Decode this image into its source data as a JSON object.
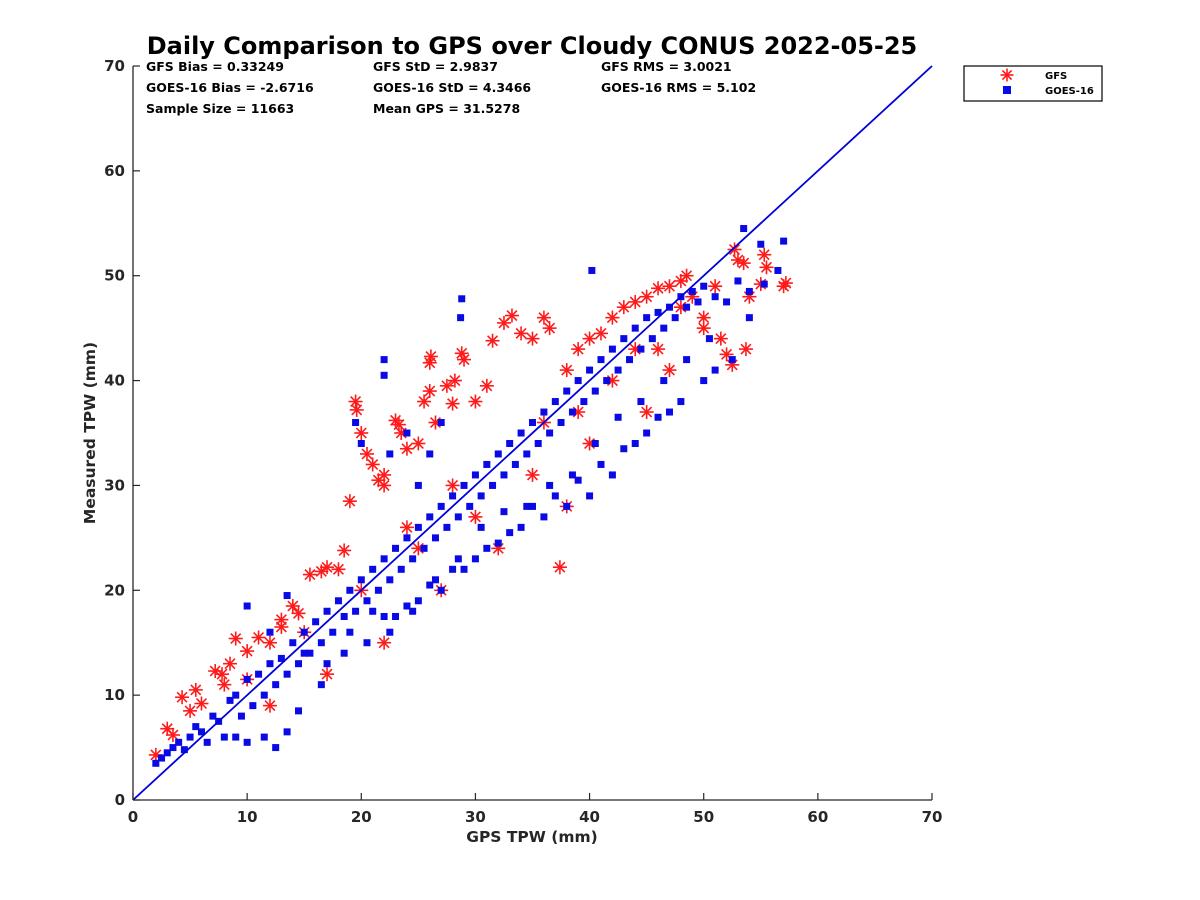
{
  "chart_data": {
    "type": "scatter",
    "title": "Daily Comparison to GPS over Cloudy CONUS 2022-05-25",
    "xlabel": "GPS TPW (mm)",
    "ylabel": "Measured TPW (mm)",
    "xlim": [
      0,
      70
    ],
    "ylim": [
      0,
      70
    ],
    "xticks": [
      "0",
      "10",
      "20",
      "30",
      "40",
      "50",
      "60",
      "70"
    ],
    "yticks": [
      "0",
      "10",
      "20",
      "30",
      "40",
      "50",
      "60",
      "70"
    ],
    "grid": false,
    "legend_position": "outside-top-right",
    "reference_line": {
      "x": [
        0,
        70
      ],
      "y": [
        0,
        70
      ],
      "color": "#0000dd"
    },
    "stats": [
      [
        "GFS Bias = 0.33249",
        "GFS StD = 2.9837",
        "GFS RMS = 3.0021"
      ],
      [
        "GOES-16 Bias = -2.6716",
        "GOES-16 StD = 4.3466",
        "GOES-16 RMS = 5.102"
      ],
      [
        "Sample Size = 11663",
        "Mean GPS = 31.5278",
        ""
      ]
    ],
    "series": [
      {
        "name": "GFS",
        "marker": "asterisk",
        "color": "#ff1a1a",
        "points": [
          [
            2,
            4.3
          ],
          [
            3,
            6.8
          ],
          [
            3.5,
            6.2
          ],
          [
            4.3,
            9.8
          ],
          [
            5,
            8.5
          ],
          [
            5.5,
            10.5
          ],
          [
            6,
            9.2
          ],
          [
            7.2,
            12.3
          ],
          [
            7.8,
            12
          ],
          [
            8.5,
            13
          ],
          [
            9,
            15.4
          ],
          [
            10,
            14.2
          ],
          [
            11,
            15.5
          ],
          [
            12,
            15
          ],
          [
            13,
            17.2
          ],
          [
            14,
            18.5
          ],
          [
            14.5,
            17.8
          ],
          [
            15.5,
            21.5
          ],
          [
            16.5,
            21.8
          ],
          [
            17,
            22.2
          ],
          [
            18.5,
            23.8
          ],
          [
            19,
            28.5
          ],
          [
            19.5,
            38
          ],
          [
            19.6,
            37.2
          ],
          [
            20,
            35
          ],
          [
            20.5,
            33
          ],
          [
            21,
            32
          ],
          [
            21.5,
            30.5
          ],
          [
            22,
            31
          ],
          [
            22,
            30
          ],
          [
            23,
            36.2
          ],
          [
            23.3,
            35.8
          ],
          [
            23.5,
            35
          ],
          [
            24,
            33.5
          ],
          [
            25,
            34
          ],
          [
            25.5,
            38
          ],
          [
            26,
            41.7
          ],
          [
            26.1,
            42.3
          ],
          [
            26,
            39
          ],
          [
            26.5,
            36
          ],
          [
            27.5,
            39.5
          ],
          [
            28,
            37.8
          ],
          [
            28.2,
            40
          ],
          [
            28.8,
            42.6
          ],
          [
            29,
            42
          ],
          [
            30,
            38
          ],
          [
            31,
            39.5
          ],
          [
            31.5,
            43.8
          ],
          [
            32.5,
            45.5
          ],
          [
            33.2,
            46.2
          ],
          [
            34,
            44.5
          ],
          [
            35,
            44
          ],
          [
            36,
            46
          ],
          [
            36.5,
            45
          ],
          [
            37.4,
            22.2
          ],
          [
            38,
            41
          ],
          [
            39,
            43
          ],
          [
            40,
            44
          ],
          [
            41,
            44.5
          ],
          [
            42,
            46
          ],
          [
            43,
            47
          ],
          [
            44,
            47.5
          ],
          [
            45,
            48
          ],
          [
            46,
            48.8
          ],
          [
            47,
            49
          ],
          [
            48,
            49.5
          ],
          [
            48.5,
            50
          ],
          [
            49,
            48
          ],
          [
            50,
            46
          ],
          [
            51,
            49
          ],
          [
            51.5,
            44
          ],
          [
            52,
            42.5
          ],
          [
            52.5,
            41.5
          ],
          [
            52.7,
            52.5
          ],
          [
            53,
            51.5
          ],
          [
            53.5,
            51.2
          ],
          [
            53.7,
            43
          ],
          [
            54,
            48
          ],
          [
            55,
            49.2
          ],
          [
            55.3,
            52
          ],
          [
            55.5,
            50.8
          ],
          [
            57,
            49
          ],
          [
            57.2,
            49.3
          ],
          [
            38,
            28
          ],
          [
            32,
            24
          ],
          [
            27,
            20
          ],
          [
            22,
            15
          ],
          [
            17,
            12
          ],
          [
            12,
            9
          ],
          [
            45,
            37
          ],
          [
            40,
            34
          ],
          [
            35,
            31
          ],
          [
            30,
            27
          ],
          [
            25,
            24
          ],
          [
            20,
            20
          ],
          [
            15,
            16
          ],
          [
            10,
            11.5
          ],
          [
            42,
            40
          ],
          [
            36,
            36
          ],
          [
            28,
            30
          ],
          [
            24,
            26
          ],
          [
            18,
            22
          ],
          [
            13,
            16.5
          ],
          [
            8,
            11
          ],
          [
            46,
            43
          ],
          [
            50,
            45
          ],
          [
            48,
            47
          ],
          [
            44,
            43
          ],
          [
            47,
            41
          ],
          [
            39,
            37
          ]
        ]
      },
      {
        "name": "GOES-16",
        "marker": "square",
        "color": "#0a0ae6",
        "points": [
          [
            2,
            3.5
          ],
          [
            2.5,
            4
          ],
          [
            3,
            4.5
          ],
          [
            3.5,
            5
          ],
          [
            4,
            5.5
          ],
          [
            4.5,
            4.8
          ],
          [
            5,
            6
          ],
          [
            5.5,
            7
          ],
          [
            6,
            6.5
          ],
          [
            6.5,
            5.5
          ],
          [
            7,
            8
          ],
          [
            7.5,
            7.5
          ],
          [
            8,
            6
          ],
          [
            8.5,
            9.5
          ],
          [
            9,
            10
          ],
          [
            9.5,
            8
          ],
          [
            10,
            11.5
          ],
          [
            10.5,
            9
          ],
          [
            11,
            12
          ],
          [
            11.5,
            10
          ],
          [
            12,
            13
          ],
          [
            12.5,
            11
          ],
          [
            13,
            13.5
          ],
          [
            13.5,
            12
          ],
          [
            14,
            15
          ],
          [
            14.5,
            13
          ],
          [
            15,
            16
          ],
          [
            15.5,
            14
          ],
          [
            16,
            17
          ],
          [
            16.5,
            15
          ],
          [
            17,
            18
          ],
          [
            17.5,
            16
          ],
          [
            18,
            19
          ],
          [
            18.5,
            17.5
          ],
          [
            19,
            20
          ],
          [
            19.5,
            18
          ],
          [
            20,
            21
          ],
          [
            20.5,
            19
          ],
          [
            21,
            22
          ],
          [
            21.5,
            20
          ],
          [
            22,
            23
          ],
          [
            22.5,
            21
          ],
          [
            23,
            24
          ],
          [
            23.5,
            22
          ],
          [
            24,
            25
          ],
          [
            24.5,
            23
          ],
          [
            25,
            26
          ],
          [
            25.5,
            24
          ],
          [
            26,
            27
          ],
          [
            26.5,
            25
          ],
          [
            27,
            28
          ],
          [
            27.5,
            26
          ],
          [
            28,
            29
          ],
          [
            28.5,
            27
          ],
          [
            29,
            30
          ],
          [
            29.5,
            28
          ],
          [
            30,
            31
          ],
          [
            30.5,
            29
          ],
          [
            31,
            32
          ],
          [
            31.5,
            30
          ],
          [
            32,
            33
          ],
          [
            32.5,
            31
          ],
          [
            33,
            34
          ],
          [
            33.5,
            32
          ],
          [
            34,
            35
          ],
          [
            34.5,
            33
          ],
          [
            35,
            36
          ],
          [
            35.5,
            34
          ],
          [
            36,
            37
          ],
          [
            36.5,
            35
          ],
          [
            37,
            38
          ],
          [
            37.5,
            36
          ],
          [
            38,
            39
          ],
          [
            38.5,
            37
          ],
          [
            39,
            40
          ],
          [
            39.5,
            38
          ],
          [
            40,
            41
          ],
          [
            40.5,
            39
          ],
          [
            41,
            42
          ],
          [
            41.5,
            40
          ],
          [
            42,
            43
          ],
          [
            42.5,
            41
          ],
          [
            43,
            44
          ],
          [
            43.5,
            42
          ],
          [
            44,
            45
          ],
          [
            44.5,
            43
          ],
          [
            45,
            46
          ],
          [
            45.5,
            44
          ],
          [
            46,
            46.5
          ],
          [
            46.5,
            45
          ],
          [
            47,
            47
          ],
          [
            47.5,
            46
          ],
          [
            48,
            48
          ],
          [
            48.5,
            47
          ],
          [
            49,
            48.5
          ],
          [
            49.5,
            47.5
          ],
          [
            50,
            49
          ],
          [
            51,
            48
          ],
          [
            52,
            47.5
          ],
          [
            53,
            49.5
          ],
          [
            54,
            48.5
          ],
          [
            55,
            53
          ],
          [
            55.3,
            49.2
          ],
          [
            56.5,
            50.5
          ],
          [
            57,
            53.3
          ],
          [
            53.5,
            54.5
          ],
          [
            40.2,
            50.5
          ],
          [
            28.8,
            47.8
          ],
          [
            28.7,
            46
          ],
          [
            22,
            42
          ],
          [
            22,
            40.5
          ],
          [
            19.5,
            36
          ],
          [
            20,
            34
          ],
          [
            22.5,
            33
          ],
          [
            25,
            30
          ],
          [
            26,
            33
          ],
          [
            27,
            36
          ],
          [
            24,
            35
          ],
          [
            10,
            18.5
          ],
          [
            13.5,
            19.5
          ],
          [
            12,
            16
          ],
          [
            15,
            14
          ],
          [
            17,
            13
          ],
          [
            19,
            16
          ],
          [
            21,
            18
          ],
          [
            23,
            17.5
          ],
          [
            25,
            19
          ],
          [
            27,
            20
          ],
          [
            29,
            22
          ],
          [
            31,
            24
          ],
          [
            33,
            25.5
          ],
          [
            35,
            28
          ],
          [
            37,
            29
          ],
          [
            39,
            30.5
          ],
          [
            41,
            32
          ],
          [
            43,
            33.5
          ],
          [
            45,
            35
          ],
          [
            47,
            37
          ],
          [
            50,
            40
          ],
          [
            51,
            41
          ],
          [
            9,
            6
          ],
          [
            10,
            5.5
          ],
          [
            11.5,
            6
          ],
          [
            12.5,
            5
          ],
          [
            13.5,
            6.5
          ],
          [
            14.5,
            8.5
          ],
          [
            16.5,
            11
          ],
          [
            18.5,
            14
          ],
          [
            20.5,
            15
          ],
          [
            22.5,
            16
          ],
          [
            24.5,
            18
          ],
          [
            26.5,
            21
          ],
          [
            28.5,
            23
          ],
          [
            30.5,
            26
          ],
          [
            32.5,
            27.5
          ],
          [
            34.5,
            28
          ],
          [
            36.5,
            30
          ],
          [
            38.5,
            31
          ],
          [
            40.5,
            34
          ],
          [
            42.5,
            36.5
          ],
          [
            44.5,
            38
          ],
          [
            46.5,
            40
          ],
          [
            48.5,
            42
          ],
          [
            50.5,
            44
          ],
          [
            52.5,
            42
          ],
          [
            54,
            46
          ],
          [
            48,
            38
          ],
          [
            46,
            36.5
          ],
          [
            44,
            34
          ],
          [
            42,
            31
          ],
          [
            40,
            29
          ],
          [
            38,
            28
          ],
          [
            36,
            27
          ],
          [
            34,
            26
          ],
          [
            32,
            24.5
          ],
          [
            30,
            23
          ],
          [
            28,
            22
          ],
          [
            26,
            20.5
          ],
          [
            24,
            18.5
          ],
          [
            22,
            17.5
          ]
        ]
      }
    ]
  }
}
